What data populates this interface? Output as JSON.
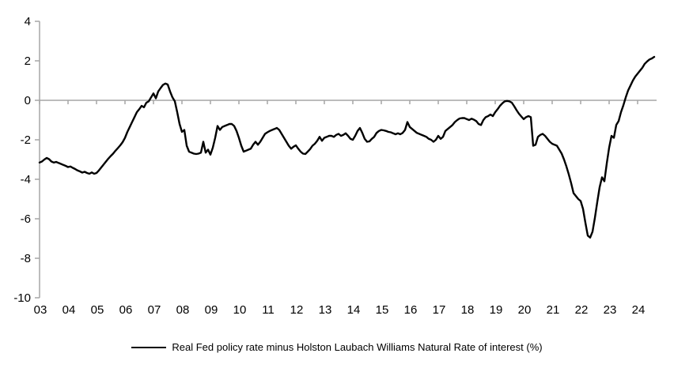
{
  "chart_data": {
    "type": "line",
    "title": "",
    "xlabel": "",
    "ylabel": "",
    "ylim": [
      -10,
      4
    ],
    "y_tick_labels": [
      "4",
      "2",
      "0",
      "-2",
      "-4",
      "-6",
      "-8",
      "-10"
    ],
    "y_tick_values": [
      4,
      2,
      0,
      -2,
      -4,
      -6,
      -8,
      -10
    ],
    "x_tick_labels": [
      "03",
      "04",
      "05",
      "06",
      "07",
      "08",
      "09",
      "10",
      "11",
      "12",
      "13",
      "14",
      "15",
      "16",
      "17",
      "18",
      "19",
      "20",
      "21",
      "22",
      "23",
      "24"
    ],
    "x_frequency": "monthly",
    "x_start": "2003-01",
    "x_end": "2024-08",
    "grid": "zero-line-only",
    "legend_position": "bottom-center",
    "axis_color": "#a6a6a6",
    "series": [
      {
        "name": "Real Fed policy rate minus Holston Laubach Williams Natural Rate of interest (%)",
        "color": "#000000",
        "values": [
          -3.15,
          -3.1,
          -3.0,
          -2.92,
          -2.98,
          -3.1,
          -3.15,
          -3.12,
          -3.17,
          -3.22,
          -3.27,
          -3.32,
          -3.38,
          -3.35,
          -3.42,
          -3.48,
          -3.55,
          -3.6,
          -3.66,
          -3.62,
          -3.68,
          -3.72,
          -3.65,
          -3.72,
          -3.68,
          -3.55,
          -3.4,
          -3.25,
          -3.1,
          -2.95,
          -2.82,
          -2.7,
          -2.55,
          -2.42,
          -2.28,
          -2.12,
          -1.9,
          -1.6,
          -1.35,
          -1.1,
          -0.85,
          -0.6,
          -0.45,
          -0.28,
          -0.35,
          -0.12,
          -0.05,
          0.15,
          0.35,
          0.1,
          0.45,
          0.62,
          0.78,
          0.85,
          0.8,
          0.45,
          0.15,
          -0.05,
          -0.6,
          -1.2,
          -1.6,
          -1.5,
          -2.3,
          -2.6,
          -2.65,
          -2.7,
          -2.72,
          -2.7,
          -2.65,
          -2.1,
          -2.65,
          -2.5,
          -2.75,
          -2.4,
          -1.9,
          -1.3,
          -1.5,
          -1.35,
          -1.3,
          -1.25,
          -1.2,
          -1.2,
          -1.3,
          -1.55,
          -1.9,
          -2.3,
          -2.6,
          -2.55,
          -2.5,
          -2.45,
          -2.25,
          -2.1,
          -2.25,
          -2.1,
          -1.9,
          -1.7,
          -1.62,
          -1.55,
          -1.5,
          -1.45,
          -1.4,
          -1.5,
          -1.7,
          -1.9,
          -2.1,
          -2.3,
          -2.45,
          -2.35,
          -2.28,
          -2.45,
          -2.6,
          -2.7,
          -2.72,
          -2.6,
          -2.47,
          -2.3,
          -2.2,
          -2.05,
          -1.85,
          -2.05,
          -1.9,
          -1.85,
          -1.8,
          -1.8,
          -1.85,
          -1.75,
          -1.7,
          -1.8,
          -1.75,
          -1.67,
          -1.8,
          -1.95,
          -2.0,
          -1.8,
          -1.55,
          -1.4,
          -1.65,
          -1.95,
          -2.1,
          -2.08,
          -1.95,
          -1.85,
          -1.65,
          -1.55,
          -1.5,
          -1.52,
          -1.55,
          -1.6,
          -1.62,
          -1.67,
          -1.72,
          -1.67,
          -1.72,
          -1.65,
          -1.5,
          -1.1,
          -1.35,
          -1.45,
          -1.55,
          -1.65,
          -1.7,
          -1.75,
          -1.8,
          -1.85,
          -1.95,
          -2.0,
          -2.1,
          -2.0,
          -1.8,
          -1.95,
          -1.85,
          -1.55,
          -1.45,
          -1.35,
          -1.25,
          -1.1,
          -1.0,
          -0.92,
          -0.9,
          -0.9,
          -0.95,
          -1.0,
          -0.93,
          -0.98,
          -1.05,
          -1.2,
          -1.25,
          -1.0,
          -0.85,
          -0.8,
          -0.72,
          -0.8,
          -0.6,
          -0.45,
          -0.28,
          -0.15,
          -0.05,
          -0.03,
          -0.05,
          -0.12,
          -0.3,
          -0.5,
          -0.68,
          -0.82,
          -0.95,
          -0.85,
          -0.8,
          -0.85,
          -2.3,
          -2.25,
          -1.85,
          -1.75,
          -1.7,
          -1.8,
          -1.95,
          -2.1,
          -2.2,
          -2.25,
          -2.3,
          -2.5,
          -2.7,
          -3.0,
          -3.35,
          -3.75,
          -4.2,
          -4.7,
          -4.85,
          -5.0,
          -5.1,
          -5.5,
          -6.2,
          -6.85,
          -6.95,
          -6.65,
          -5.95,
          -5.15,
          -4.4,
          -3.9,
          -4.1,
          -3.2,
          -2.4,
          -1.8,
          -1.9,
          -1.25,
          -1.05,
          -0.6,
          -0.25,
          0.15,
          0.5,
          0.75,
          1.0,
          1.2,
          1.35,
          1.5,
          1.65,
          1.85,
          1.97,
          2.07,
          2.12,
          2.2
        ]
      }
    ]
  },
  "legend": {
    "label": "Real Fed policy rate minus Holston Laubach Williams Natural Rate of interest (%)"
  }
}
